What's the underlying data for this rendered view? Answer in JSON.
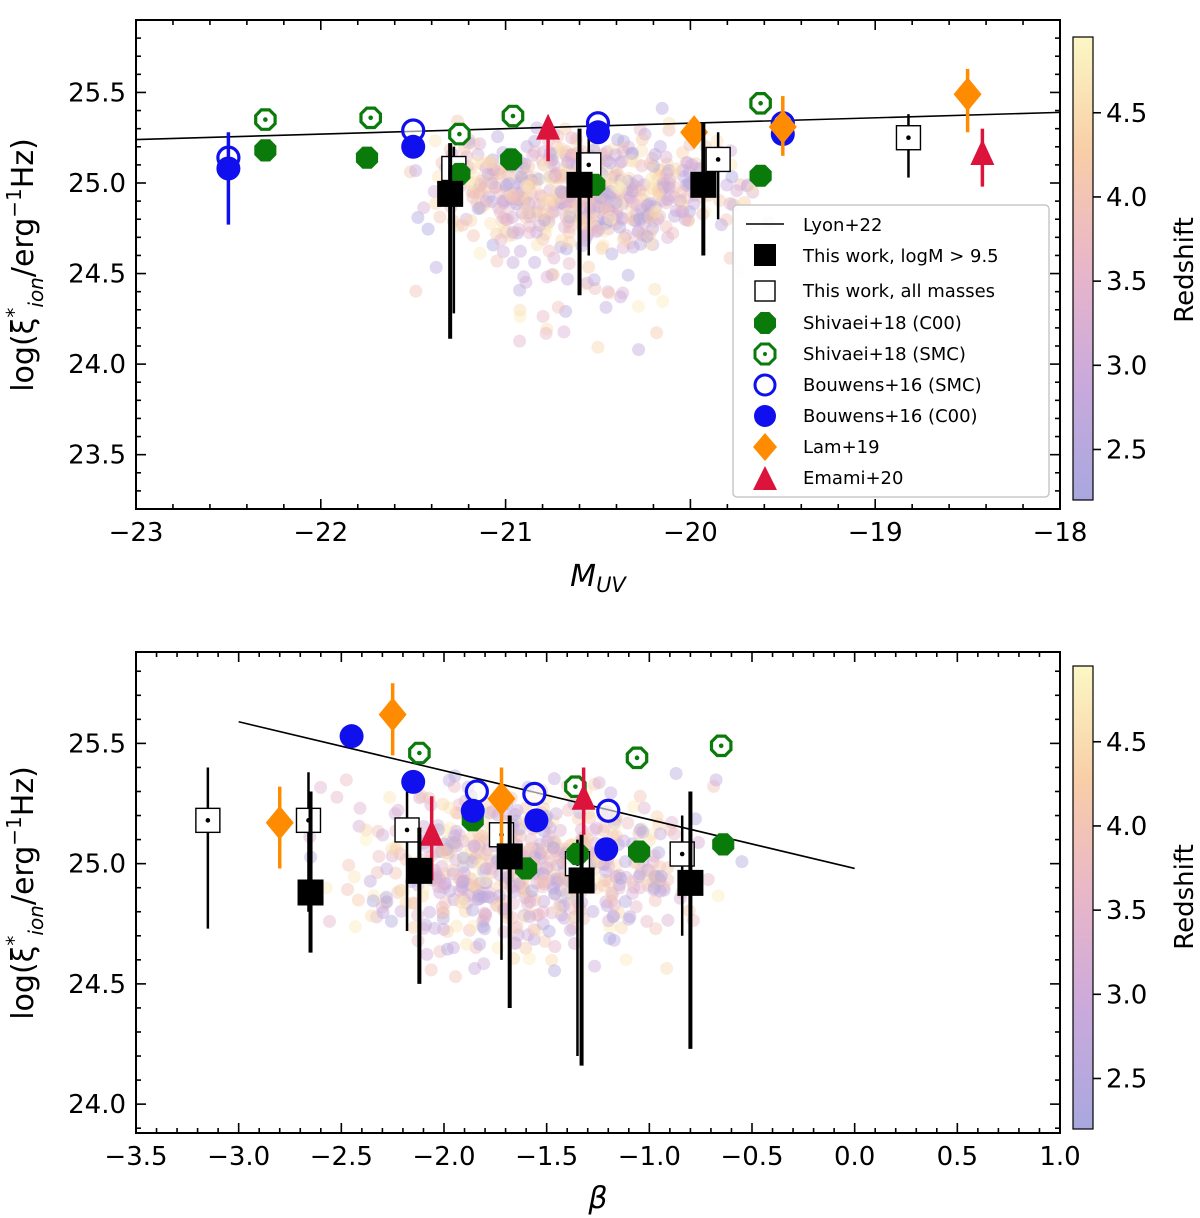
{
  "figure": {
    "colorbar_label": "Redshift",
    "colorbar_ticks": [
      "2.5",
      "3.0",
      "3.5",
      "4.0",
      "4.5"
    ],
    "colorbar_range": [
      2.2,
      4.95
    ]
  },
  "chart_data": [
    {
      "type": "scatter",
      "id": "top",
      "ylabel": "log(ξ*ion/erg−1Hz)",
      "xlabel": "MUV",
      "xlim": [
        -23,
        -18
      ],
      "ylim": [
        23.2,
        25.9
      ],
      "xticks": [
        -23,
        -22,
        -21,
        -20,
        -19,
        -18
      ],
      "xtick_labels": [
        "−23",
        "−22",
        "−21",
        "−20",
        "−19",
        "−18"
      ],
      "yticks": [
        23.5,
        24.0,
        24.5,
        25.0,
        25.5
      ],
      "ytick_labels": [
        "23.5",
        "24.0",
        "24.5",
        "25.0",
        "25.5"
      ],
      "legend": {
        "position": "lower-right",
        "entries": [
          {
            "label": "Lyon+22",
            "marker": "line",
            "color": "#000000"
          },
          {
            "label": "This work, logM > 9.5",
            "marker": "square-filled",
            "color": "#000000"
          },
          {
            "label": "This work, all masses",
            "marker": "square-open",
            "color": "#000000"
          },
          {
            "label": "Shivaei+18 (C00)",
            "marker": "octagon-filled",
            "color": "#0a7a0a"
          },
          {
            "label": "Shivaei+18 (SMC)",
            "marker": "octagon-open",
            "color": "#0a7a0a"
          },
          {
            "label": "Bouwens+16 (SMC)",
            "marker": "circle-open",
            "color": "#1010ee"
          },
          {
            "label": "Bouwens+16 (C00)",
            "marker": "circle-filled",
            "color": "#1010ee"
          },
          {
            "label": "Lam+19",
            "marker": "diamond",
            "color": "#ff8c00"
          },
          {
            "label": "Emami+20",
            "marker": "triangle",
            "color": "#dc143c"
          }
        ]
      },
      "trend_line": {
        "name": "Lyon+22",
        "x": [
          -23,
          -18
        ],
        "y": [
          25.24,
          25.39
        ]
      },
      "series": [
        {
          "name": "This work, logM > 9.5",
          "marker": "square-filled",
          "points": [
            {
              "x": -21.3,
              "y": 24.94,
              "lo": 24.14,
              "hi": 25.22
            },
            {
              "x": -20.6,
              "y": 24.99,
              "lo": 24.38,
              "hi": 25.3
            },
            {
              "x": -19.93,
              "y": 24.99,
              "lo": 24.6,
              "hi": 25.33
            }
          ]
        },
        {
          "name": "This work, all masses",
          "marker": "square-open",
          "points": [
            {
              "x": -21.28,
              "y": 25.08,
              "lo": 24.28,
              "hi": 25.2
            },
            {
              "x": -20.55,
              "y": 25.1,
              "lo": 24.6,
              "hi": 25.28
            },
            {
              "x": -19.85,
              "y": 25.13,
              "lo": 24.8,
              "hi": 25.28
            },
            {
              "x": -18.82,
              "y": 25.25,
              "lo": 25.03,
              "hi": 25.38
            }
          ]
        },
        {
          "name": "Shivaei+18 (C00)",
          "marker": "octagon-filled",
          "points": [
            {
              "x": -22.3,
              "y": 25.18
            },
            {
              "x": -21.75,
              "y": 25.14
            },
            {
              "x": -21.25,
              "y": 25.05
            },
            {
              "x": -20.97,
              "y": 25.13
            },
            {
              "x": -20.52,
              "y": 24.99
            },
            {
              "x": -19.62,
              "y": 25.04
            }
          ]
        },
        {
          "name": "Shivaei+18 (SMC)",
          "marker": "octagon-open",
          "points": [
            {
              "x": -22.3,
              "y": 25.35
            },
            {
              "x": -21.73,
              "y": 25.36
            },
            {
              "x": -21.25,
              "y": 25.27
            },
            {
              "x": -20.96,
              "y": 25.37
            },
            {
              "x": -19.62,
              "y": 25.44
            }
          ]
        },
        {
          "name": "Bouwens+16 (SMC)",
          "marker": "circle-open",
          "points": [
            {
              "x": -22.5,
              "y": 25.14
            },
            {
              "x": -21.5,
              "y": 25.29
            },
            {
              "x": -20.5,
              "y": 25.33
            },
            {
              "x": -19.5,
              "y": 25.33
            }
          ]
        },
        {
          "name": "Bouwens+16 (C00)",
          "marker": "circle-filled",
          "points": [
            {
              "x": -22.5,
              "y": 25.08,
              "lo": 24.77,
              "hi": 25.28
            },
            {
              "x": -21.5,
              "y": 25.2
            },
            {
              "x": -20.5,
              "y": 25.28
            },
            {
              "x": -19.5,
              "y": 25.27
            }
          ]
        },
        {
          "name": "Lam+19",
          "marker": "diamond",
          "points": [
            {
              "x": -19.98,
              "y": 25.28
            },
            {
              "x": -19.5,
              "y": 25.31,
              "lo": 25.15,
              "hi": 25.48
            },
            {
              "x": -18.5,
              "y": 25.49,
              "lo": 25.28,
              "hi": 25.63
            }
          ]
        },
        {
          "name": "Emami+20",
          "marker": "triangle",
          "points": [
            {
              "x": -20.77,
              "y": 25.3,
              "lo": 25.12,
              "hi": 25.34
            },
            {
              "x": -18.42,
              "y": 25.16,
              "lo": 24.98,
              "hi": 25.3
            }
          ]
        }
      ]
    },
    {
      "type": "scatter",
      "id": "bottom",
      "ylabel": "log(ξ*ion/erg−1Hz)",
      "xlabel": "β",
      "xlim": [
        -3.5,
        1.0
      ],
      "ylim": [
        23.88,
        25.88
      ],
      "xticks": [
        -3.5,
        -3.0,
        -2.5,
        -2.0,
        -1.5,
        -1.0,
        -0.5,
        0.0,
        0.5,
        1.0
      ],
      "xtick_labels": [
        "−3.5",
        "−3.0",
        "−2.5",
        "−2.0",
        "−1.5",
        "−1.0",
        "−0.5",
        "0.0",
        "0.5",
        "1.0"
      ],
      "yticks": [
        24.0,
        24.5,
        25.0,
        25.5
      ],
      "ytick_labels": [
        "24.0",
        "24.5",
        "25.0",
        "25.5"
      ],
      "trend_line": {
        "name": "Lyon+22",
        "x": [
          -3.0,
          0.0
        ],
        "y": [
          25.59,
          24.98
        ]
      },
      "series": [
        {
          "name": "This work, logM > 9.5",
          "marker": "square-filled",
          "points": [
            {
              "x": -2.65,
              "y": 24.88,
              "lo": 24.63,
              "hi": 25.3
            },
            {
              "x": -2.12,
              "y": 24.97,
              "lo": 24.5,
              "hi": 25.15
            },
            {
              "x": -1.68,
              "y": 25.03,
              "lo": 24.4,
              "hi": 25.2
            },
            {
              "x": -1.33,
              "y": 24.93,
              "lo": 24.16,
              "hi": 25.12
            },
            {
              "x": -0.8,
              "y": 24.92,
              "lo": 24.23,
              "hi": 25.3
            }
          ]
        },
        {
          "name": "This work, all masses",
          "marker": "square-open",
          "points": [
            {
              "x": -3.15,
              "y": 25.18,
              "lo": 24.73,
              "hi": 25.4
            },
            {
              "x": -2.66,
              "y": 25.18,
              "lo": 24.8,
              "hi": 25.38
            },
            {
              "x": -2.18,
              "y": 25.14,
              "lo": 24.72,
              "hi": 25.3
            },
            {
              "x": -1.72,
              "y": 25.12,
              "lo": 24.6,
              "hi": 25.25
            },
            {
              "x": -1.35,
              "y": 25.0,
              "lo": 24.2,
              "hi": 25.1
            },
            {
              "x": -0.84,
              "y": 25.04,
              "lo": 24.7,
              "hi": 25.2
            }
          ]
        },
        {
          "name": "Shivaei+18 (C00)",
          "marker": "octagon-filled",
          "points": [
            {
              "x": -1.86,
              "y": 25.18
            },
            {
              "x": -1.6,
              "y": 24.98
            },
            {
              "x": -1.35,
              "y": 25.04
            },
            {
              "x": -1.05,
              "y": 25.05
            },
            {
              "x": -0.64,
              "y": 25.08
            }
          ]
        },
        {
          "name": "Shivaei+18 (SMC)",
          "marker": "octagon-open",
          "points": [
            {
              "x": -2.12,
              "y": 25.46
            },
            {
              "x": -1.36,
              "y": 25.32
            },
            {
              "x": -1.06,
              "y": 25.44
            },
            {
              "x": -0.65,
              "y": 25.49
            }
          ]
        },
        {
          "name": "Bouwens+16 (SMC)",
          "marker": "circle-open",
          "points": [
            {
              "x": -1.84,
              "y": 25.3
            },
            {
              "x": -1.56,
              "y": 25.29
            },
            {
              "x": -1.2,
              "y": 25.22
            }
          ]
        },
        {
          "name": "Bouwens+16 (C00)",
          "marker": "circle-filled",
          "points": [
            {
              "x": -2.45,
              "y": 25.53
            },
            {
              "x": -2.15,
              "y": 25.34
            },
            {
              "x": -1.86,
              "y": 25.22
            },
            {
              "x": -1.55,
              "y": 25.18
            },
            {
              "x": -1.21,
              "y": 25.06
            }
          ]
        },
        {
          "name": "Lam+19",
          "marker": "diamond",
          "points": [
            {
              "x": -2.8,
              "y": 25.17,
              "lo": 24.98,
              "hi": 25.32
            },
            {
              "x": -2.25,
              "y": 25.62,
              "lo": 25.45,
              "hi": 25.75
            },
            {
              "x": -1.72,
              "y": 25.27,
              "lo": 25.05,
              "hi": 25.4
            }
          ]
        },
        {
          "name": "Emami+20",
          "marker": "triangle",
          "points": [
            {
              "x": -2.06,
              "y": 25.12,
              "lo": 24.93,
              "hi": 25.28
            },
            {
              "x": -1.32,
              "y": 25.27,
              "lo": 25.12,
              "hi": 25.4
            }
          ]
        }
      ]
    }
  ]
}
